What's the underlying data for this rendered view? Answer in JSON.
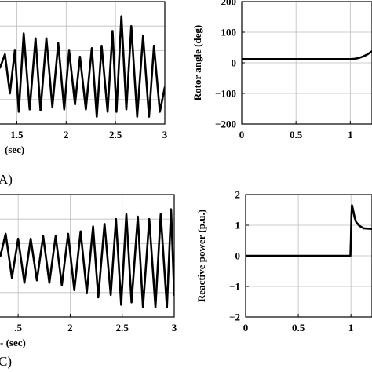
{
  "chart_data": [
    {
      "id": "A_left",
      "type": "line",
      "x_tick_labels": [
        "1.5",
        "2",
        "2.5",
        "3"
      ],
      "xlim": [
        1.25,
        3
      ],
      "ylim": [
        0,
        1
      ],
      "xlabel_visible": "(sec)",
      "panel_label": "A)",
      "grid": true,
      "series": [
        {
          "x": [
            1.25,
            1.28,
            1.33,
            1.38,
            1.43,
            1.48,
            1.52,
            1.57,
            1.63,
            1.69,
            1.74,
            1.8,
            1.86,
            1.92,
            1.98,
            2.03,
            2.09,
            2.14,
            2.2,
            2.26,
            2.31,
            2.36,
            2.42,
            2.47,
            2.51,
            2.56,
            2.61,
            2.66,
            2.72,
            2.78,
            2.84,
            2.89,
            2.95,
            3.0
          ],
          "y": [
            0.62,
            0.6,
            0.46,
            0.57,
            0.25,
            0.6,
            0.1,
            0.74,
            0.12,
            0.7,
            0.11,
            0.7,
            0.14,
            0.66,
            0.12,
            0.6,
            0.16,
            0.55,
            0.12,
            0.62,
            0.06,
            0.64,
            0.1,
            0.76,
            0.1,
            0.88,
            0.12,
            0.8,
            0.06,
            0.72,
            0.06,
            0.64,
            0.1,
            0.3
          ]
        }
      ]
    },
    {
      "id": "A_right",
      "type": "line",
      "yticks": [
        200,
        100,
        0,
        -100,
        -200
      ],
      "y_tick_labels": [
        "200",
        "100",
        "0",
        "−100",
        "−200"
      ],
      "xticks": [
        0,
        0.5,
        1
      ],
      "x_tick_labels": [
        "0",
        "0.5",
        "1"
      ],
      "xlim": [
        0,
        1.2
      ],
      "ylim": [
        -200,
        200
      ],
      "ylabel": "Rotor angle (deg)",
      "grid": true,
      "series": [
        {
          "x": [
            0,
            0.2,
            0.4,
            0.6,
            0.8,
            1.0,
            1.04,
            1.08,
            1.12,
            1.16,
            1.2
          ],
          "y": [
            12,
            12,
            12,
            12,
            12,
            12,
            13,
            16,
            21,
            28,
            38
          ]
        }
      ]
    },
    {
      "id": "C_left",
      "type": "line",
      "x_tick_labels": [
        ".5",
        "2",
        "2.5",
        "3"
      ],
      "xlim": [
        1.25,
        3
      ],
      "ylim": [
        0,
        1
      ],
      "xlabel_visible": "- (sec)",
      "panel_label": "C)",
      "grid": true,
      "series": [
        {
          "x": [
            1.25,
            1.28,
            1.33,
            1.38,
            1.44,
            1.5,
            1.56,
            1.62,
            1.68,
            1.74,
            1.8,
            1.86,
            1.92,
            1.98,
            2.04,
            2.1,
            2.16,
            2.22,
            2.27,
            2.33,
            2.39,
            2.44,
            2.49,
            2.54,
            2.59,
            2.65,
            2.7,
            2.76,
            2.82,
            2.87,
            2.93,
            2.97,
            3.0
          ],
          "y": [
            0.45,
            0.62,
            0.5,
            0.68,
            0.32,
            0.64,
            0.28,
            0.64,
            0.3,
            0.66,
            0.28,
            0.66,
            0.26,
            0.68,
            0.22,
            0.7,
            0.2,
            0.74,
            0.16,
            0.76,
            0.18,
            0.8,
            0.1,
            0.84,
            0.12,
            0.82,
            0.08,
            0.8,
            0.08,
            0.84,
            0.08,
            0.88,
            0.18
          ]
        }
      ]
    },
    {
      "id": "C_right",
      "type": "line",
      "yticks": [
        2,
        1,
        0,
        -1,
        -2
      ],
      "y_tick_labels": [
        "2",
        "1",
        "0",
        "−1",
        "−2"
      ],
      "xticks": [
        0,
        0.5,
        1
      ],
      "x_tick_labels": [
        "0",
        "0.5",
        "1"
      ],
      "xlim": [
        0,
        1.2
      ],
      "ylim": [
        -2,
        2
      ],
      "ylabel": "Reactive power (p.u.)",
      "grid": true,
      "series": [
        {
          "x": [
            0,
            0.2,
            0.4,
            0.6,
            0.8,
            0.995,
            1.0,
            1.005,
            1.01,
            1.02,
            1.035,
            1.05,
            1.08,
            1.12,
            1.2
          ],
          "y": [
            0,
            0,
            0,
            0,
            0,
            0,
            0.6,
            1.3,
            1.65,
            1.5,
            1.25,
            1.1,
            0.98,
            0.9,
            0.88
          ]
        }
      ]
    }
  ]
}
